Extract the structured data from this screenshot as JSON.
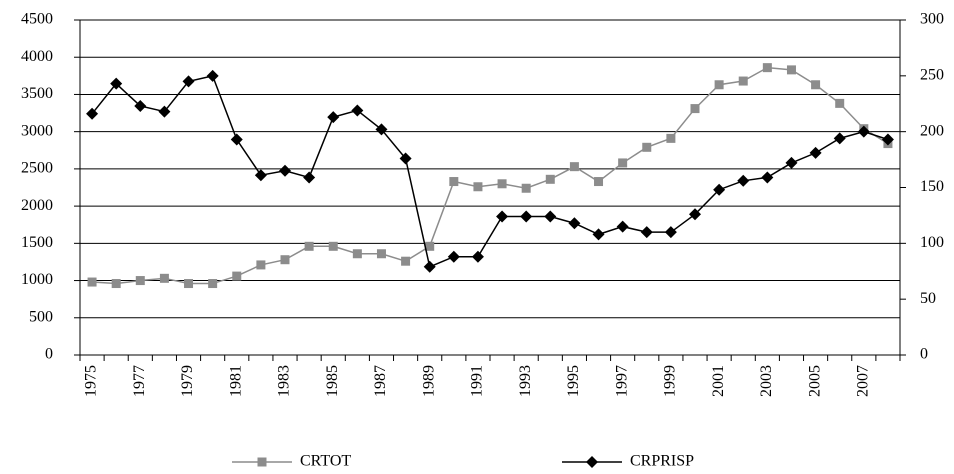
{
  "chart_data": {
    "type": "line",
    "categories": [
      "1975",
      null,
      "1977",
      null,
      "1979",
      null,
      "1981",
      null,
      "1983",
      null,
      "1985",
      null,
      "1987",
      null,
      "1989",
      null,
      "1991",
      null,
      "1993",
      null,
      "1995",
      null,
      "1997",
      null,
      "1999",
      null,
      "2001",
      null,
      "2003",
      null,
      "2005",
      null,
      "2007",
      null
    ],
    "series": [
      {
        "name": "CRTOT",
        "color": "#8c8c8c",
        "marker": "square",
        "values": [
          980,
          960,
          1000,
          1030,
          960,
          960,
          1060,
          1210,
          1280,
          1460,
          1460,
          1360,
          1360,
          1260,
          1460,
          2330,
          2260,
          2300,
          2240,
          2360,
          2530,
          2330,
          2580,
          2790,
          2910,
          3310,
          3630,
          3680,
          3860,
          3830,
          3630,
          3380,
          3040,
          2840
        ]
      },
      {
        "name": "CRPRISP",
        "color": "#000000",
        "marker": "diamond",
        "axis": "y2",
        "values": [
          216,
          243,
          223,
          218,
          245,
          250,
          193,
          161,
          165,
          159,
          213,
          219,
          202,
          176,
          79,
          88,
          88,
          124,
          124,
          124,
          118,
          108,
          115,
          110,
          110,
          126,
          148,
          156,
          159,
          172,
          181,
          194,
          200,
          193
        ]
      }
    ],
    "ylim": [
      0,
      4500
    ],
    "yticks": [
      0,
      500,
      1000,
      1500,
      2000,
      2500,
      3000,
      3500,
      4000,
      4500
    ],
    "y2lim": [
      0,
      300
    ],
    "y2ticks": [
      0,
      50,
      100,
      150,
      200,
      250,
      300
    ],
    "grid": true,
    "legend": "bottom"
  }
}
